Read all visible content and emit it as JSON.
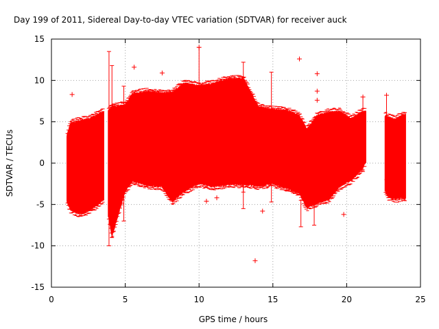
{
  "chart_data": {
    "type": "scatter",
    "title": "Day 199 of 2011, Sidereal Day-to-day VTEC variation (SDTVAR) for receiver auck",
    "xlabel": "GPS time / hours",
    "ylabel": "SDTVAR / TECUs",
    "xlim": [
      0,
      25
    ],
    "ylim": [
      -15,
      15
    ],
    "xticks": [
      0,
      5,
      10,
      15,
      20,
      25
    ],
    "yticks": [
      -15,
      -10,
      -5,
      0,
      5,
      10,
      15
    ],
    "grid": true,
    "series_color": "#ff0000",
    "marker": "plus",
    "band_segments": [
      {
        "x_start": 1.05,
        "x_end": 3.55,
        "envelope": [
          [
            1.05,
            -4.8,
            3.5
          ],
          [
            1.3,
            -5.8,
            5.0
          ],
          [
            2.0,
            -6.3,
            5.3
          ],
          [
            2.6,
            -5.8,
            5.5
          ],
          [
            3.1,
            -5.2,
            6.0
          ],
          [
            3.55,
            -4.5,
            6.4
          ]
        ]
      },
      {
        "x_start": 3.85,
        "x_end": 21.3,
        "envelope": [
          [
            3.85,
            -6.5,
            6.5
          ],
          [
            4.1,
            -9.0,
            7.0
          ],
          [
            4.5,
            -6.5,
            7.0
          ],
          [
            5.0,
            -3.5,
            7.2
          ],
          [
            5.5,
            -2.3,
            8.5
          ],
          [
            6.5,
            -2.8,
            8.8
          ],
          [
            7.5,
            -3.0,
            8.6
          ],
          [
            8.2,
            -4.8,
            8.7
          ],
          [
            9.0,
            -3.5,
            9.8
          ],
          [
            10.0,
            -2.6,
            9.5
          ],
          [
            11.0,
            -3.0,
            9.8
          ],
          [
            12.0,
            -2.7,
            10.3
          ],
          [
            13.0,
            -2.7,
            10.4
          ],
          [
            14.0,
            -2.9,
            7.0
          ],
          [
            15.0,
            -2.6,
            6.6
          ],
          [
            16.0,
            -3.2,
            6.5
          ],
          [
            16.8,
            -3.8,
            5.9
          ],
          [
            17.3,
            -5.5,
            4.2
          ],
          [
            18.0,
            -5.0,
            5.9
          ],
          [
            18.8,
            -4.5,
            6.3
          ],
          [
            19.5,
            -3.0,
            6.4
          ],
          [
            20.3,
            -2.2,
            5.5
          ],
          [
            21.0,
            -1.0,
            6.3
          ],
          [
            21.3,
            0.0,
            6.4
          ]
        ]
      },
      {
        "x_start": 22.6,
        "x_end": 24.0,
        "envelope": [
          [
            22.6,
            -3.5,
            5.9
          ],
          [
            22.8,
            -4.2,
            5.7
          ],
          [
            23.3,
            -4.5,
            5.4
          ],
          [
            23.7,
            -4.3,
            5.9
          ],
          [
            24.0,
            -4.5,
            6.0
          ]
        ]
      }
    ],
    "spikes": [
      [
        3.9,
        -10.0,
        13.5
      ],
      [
        4.1,
        -9.0,
        11.8
      ],
      [
        4.9,
        -7.0,
        9.3
      ],
      [
        10.0,
        -2.0,
        14.0
      ],
      [
        13.0,
        -3.5,
        12.2
      ],
      [
        13.0,
        -5.5,
        7.0
      ],
      [
        14.9,
        -4.7,
        11.0
      ],
      [
        16.9,
        -7.7,
        -4.5
      ],
      [
        17.8,
        -7.5,
        -4.5
      ],
      [
        21.1,
        -1.0,
        8.0
      ],
      [
        22.7,
        -2.0,
        8.2
      ]
    ],
    "outliers": [
      [
        1.4,
        8.3
      ],
      [
        5.6,
        11.6
      ],
      [
        7.5,
        10.9
      ],
      [
        10.0,
        14.0
      ],
      [
        10.5,
        -4.6
      ],
      [
        11.2,
        -4.2
      ],
      [
        13.8,
        -11.8
      ],
      [
        16.8,
        12.6
      ],
      [
        18.0,
        10.8
      ],
      [
        18.0,
        8.7
      ],
      [
        18.0,
        7.6
      ],
      [
        19.8,
        -6.2
      ],
      [
        21.1,
        8.0
      ],
      [
        14.3,
        -5.8
      ],
      [
        22.7,
        8.2
      ]
    ]
  }
}
